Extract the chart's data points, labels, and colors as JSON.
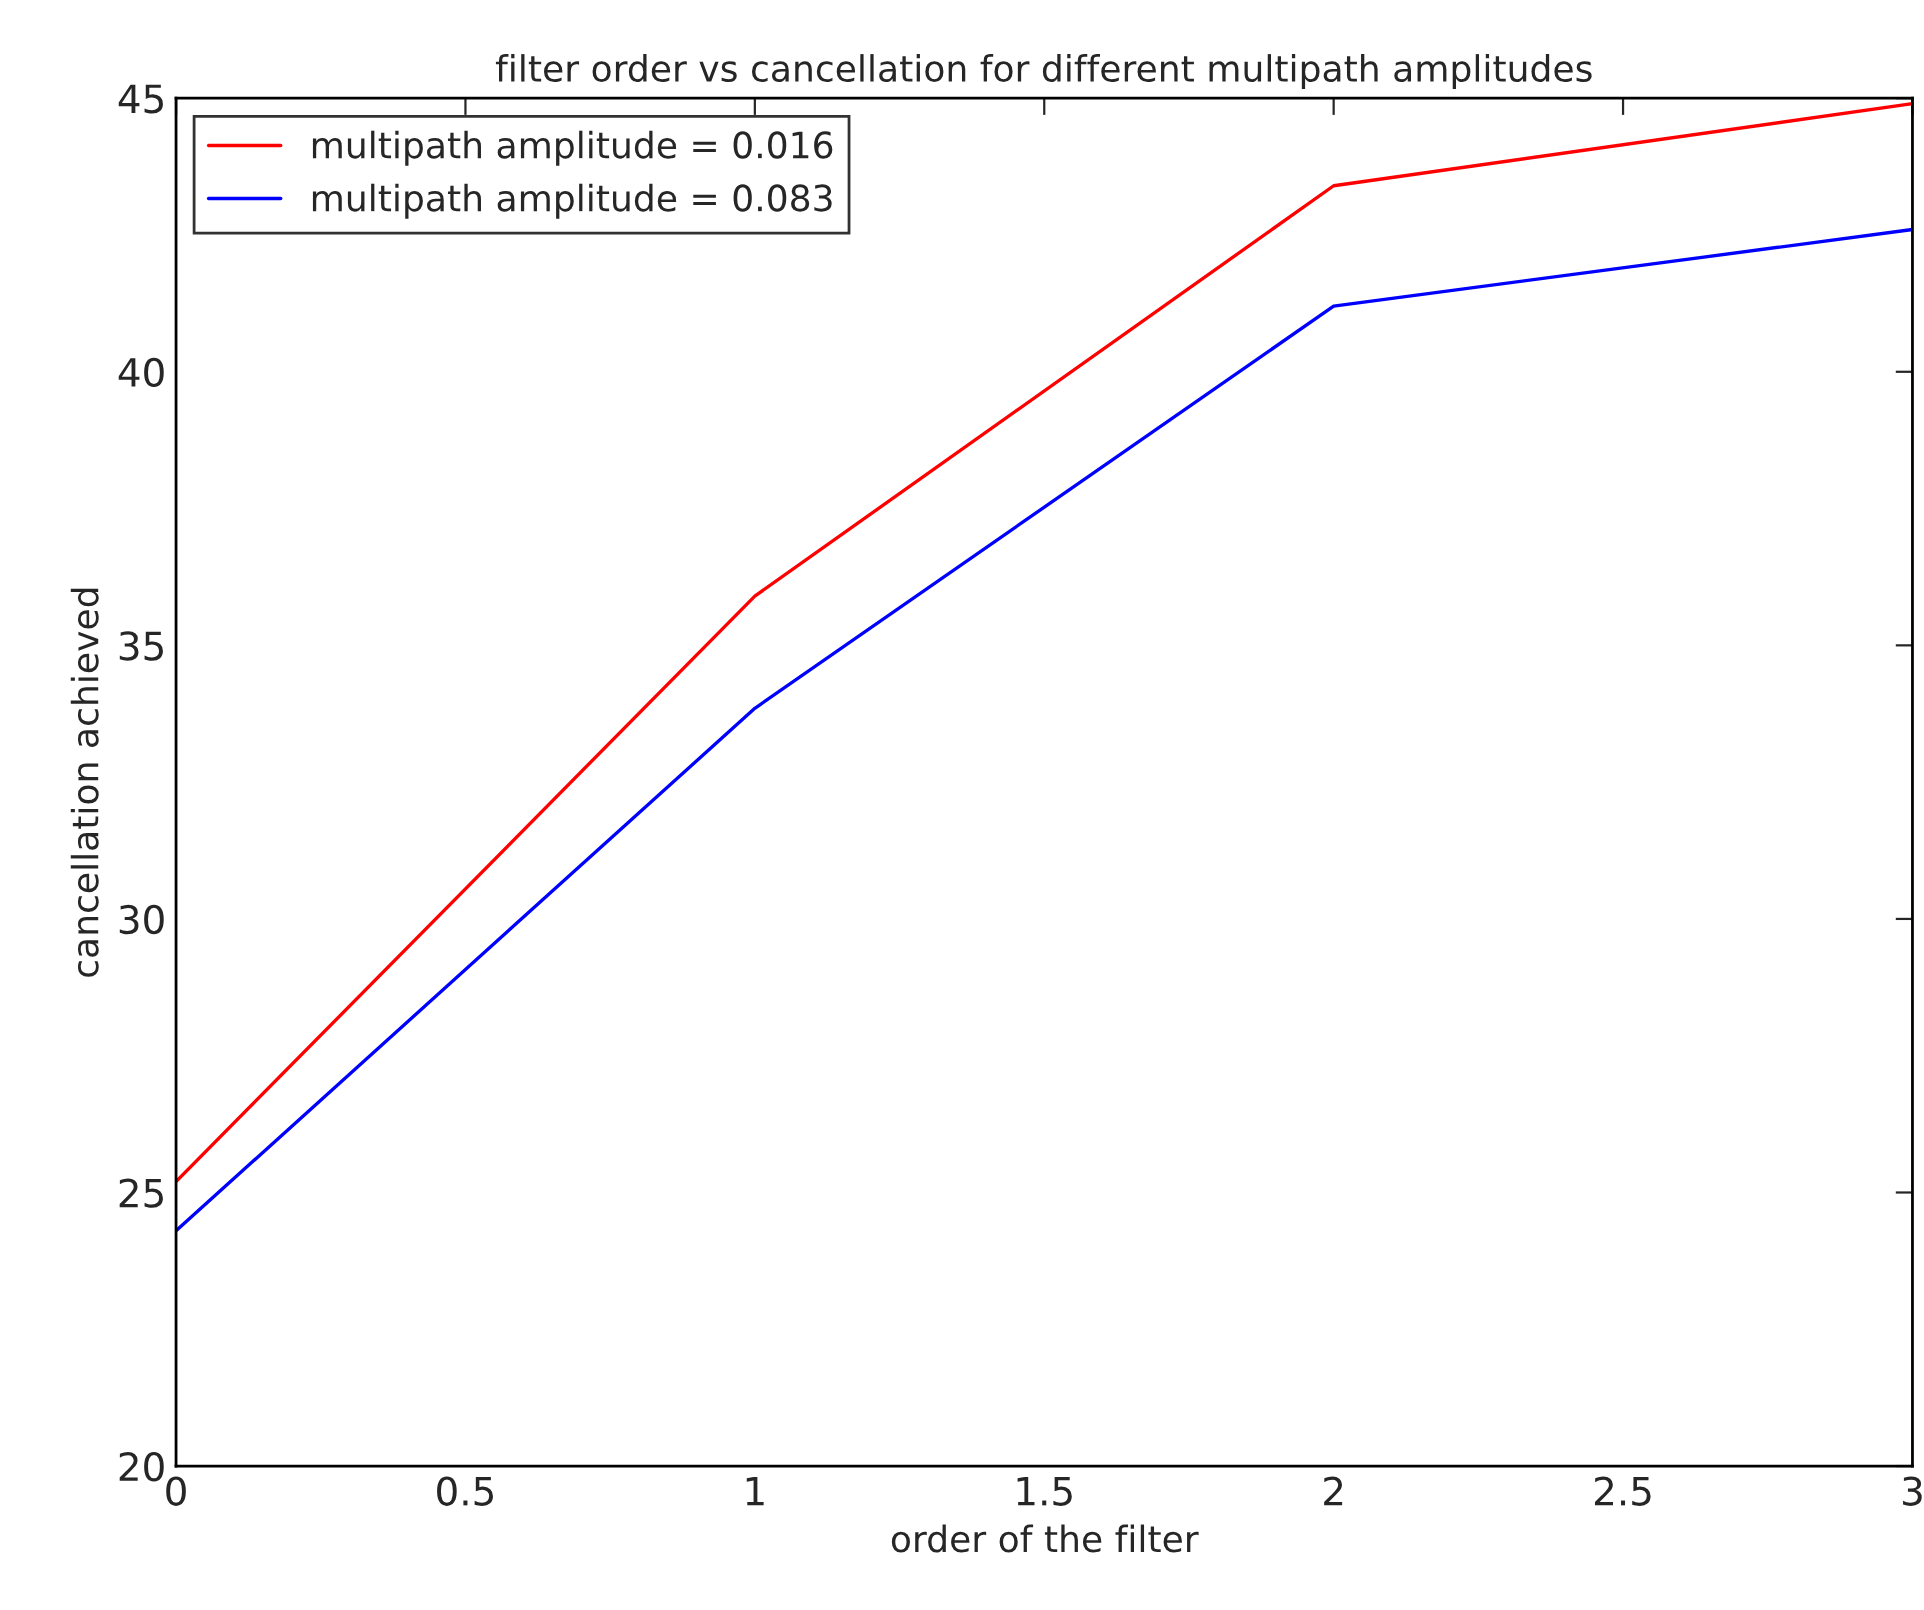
{
  "chart_data": {
    "type": "line",
    "title": "filter order vs cancellation for different multipath amplitudes",
    "xlabel": "order of the filter",
    "ylabel": "cancellation achieved",
    "x": [
      0,
      1,
      2,
      3
    ],
    "series": [
      {
        "name": "multipath amplitude = 0.016",
        "color": "#ff0000",
        "values": [
          25.2,
          35.9,
          43.4,
          44.9
        ]
      },
      {
        "name": "multipath amplitude = 0.083",
        "color": "#0000ff",
        "values": [
          24.3,
          33.85,
          41.2,
          42.6
        ]
      }
    ],
    "xlim": [
      0,
      3
    ],
    "xticks": [
      0,
      0.5,
      1,
      1.5,
      2,
      2.5,
      3
    ],
    "ylim": [
      20,
      45
    ],
    "yticks": [
      20,
      25,
      30,
      35,
      40,
      45
    ],
    "grid": false,
    "legend": "top left",
    "marker": "none",
    "line_style": "solid"
  }
}
